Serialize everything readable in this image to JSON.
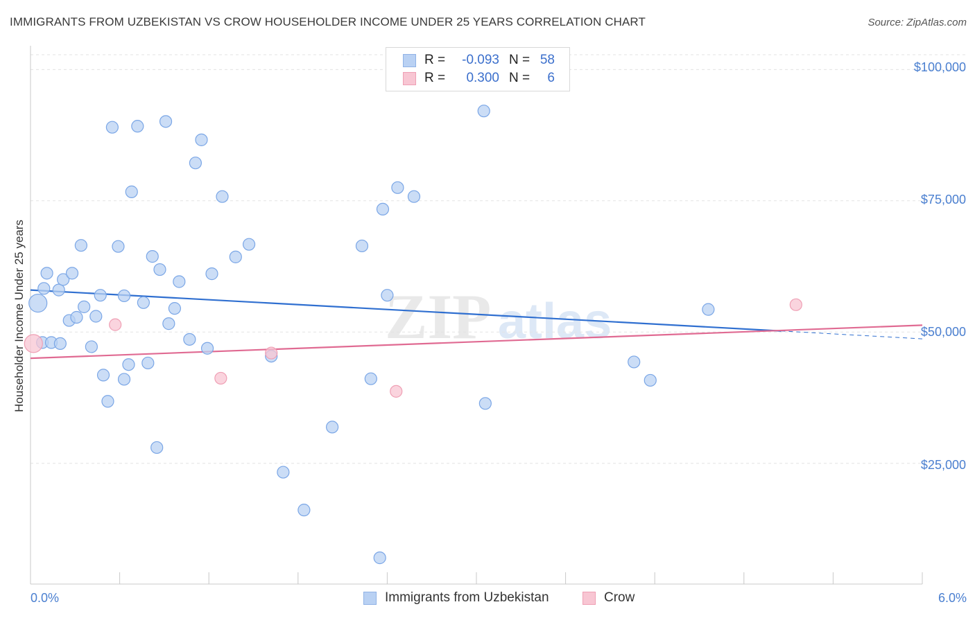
{
  "title": "IMMIGRANTS FROM UZBEKISTAN VS CROW HOUSEHOLDER INCOME UNDER 25 YEARS CORRELATION CHART",
  "source": "Source: ZipAtlas.com",
  "watermark": {
    "zip": "ZIP",
    "atlas": "atlas"
  },
  "legend": {
    "rows": [
      {
        "r_label": "R =",
        "r_value": "-0.093",
        "n_label": "N =",
        "n_value": "58",
        "fill": "#b9d1f3",
        "stroke": "#8fb2e6"
      },
      {
        "r_label": "R =",
        "r_value": "0.300",
        "n_label": "N =",
        "n_value": "6",
        "fill": "#f8c6d3",
        "stroke": "#ef9fb4"
      }
    ]
  },
  "bottom_legend": {
    "items": [
      {
        "label": "Immigrants from Uzbekistan",
        "fill": "#b9d1f3",
        "stroke": "#8fb2e6"
      },
      {
        "label": "Crow",
        "fill": "#f8c6d3",
        "stroke": "#ef9fb4"
      }
    ]
  },
  "chart_data": {
    "type": "scatter",
    "title": "IMMIGRANTS FROM UZBEKISTAN VS CROW HOUSEHOLDER INCOME UNDER 25 YEARS CORRELATION CHART",
    "xlabel": "",
    "ylabel": "Householder Income Under 25 years",
    "x_tick_labels": [
      "0.0%",
      "6.0%"
    ],
    "y_tick_labels": [
      "$25,000",
      "$50,000",
      "$75,000",
      "$100,000"
    ],
    "xlim": [
      0,
      6
    ],
    "ylim": [
      2000,
      104000
    ],
    "y_ticks": [
      25000,
      50000,
      75000,
      100000
    ],
    "grid": true,
    "legend_position": "top-center",
    "series": [
      {
        "name": "Immigrants from Uzbekistan",
        "color": "#7aa6e6",
        "fill": "#b9d1f3",
        "trend_color": "#2f6fd0",
        "trend": {
          "x0": 0.0,
          "y0": 58000,
          "x1": 5.05,
          "y1": 50200
        },
        "trend_ext": {
          "x0": 5.05,
          "y0": 50200,
          "x1": 6.0,
          "y1": 48700
        },
        "points": [
          {
            "x": 0.05,
            "y": 55500,
            "big": true
          },
          {
            "x": 0.08,
            "y": 48000
          },
          {
            "x": 0.14,
            "y": 48000
          },
          {
            "x": 0.11,
            "y": 61200
          },
          {
            "x": 0.19,
            "y": 58000
          },
          {
            "x": 0.22,
            "y": 60000
          },
          {
            "x": 0.26,
            "y": 52200
          },
          {
            "x": 0.28,
            "y": 61200
          },
          {
            "x": 0.31,
            "y": 52800
          },
          {
            "x": 0.34,
            "y": 66500
          },
          {
            "x": 0.36,
            "y": 54800
          },
          {
            "x": 0.41,
            "y": 47200
          },
          {
            "x": 0.44,
            "y": 53000
          },
          {
            "x": 0.47,
            "y": 57000
          },
          {
            "x": 0.49,
            "y": 41800
          },
          {
            "x": 0.52,
            "y": 36800
          },
          {
            "x": 0.55,
            "y": 89000
          },
          {
            "x": 0.59,
            "y": 66300
          },
          {
            "x": 0.63,
            "y": 56900
          },
          {
            "x": 0.63,
            "y": 41000
          },
          {
            "x": 0.66,
            "y": 43800
          },
          {
            "x": 0.72,
            "y": 89200
          },
          {
            "x": 0.68,
            "y": 76700
          },
          {
            "x": 0.76,
            "y": 55600
          },
          {
            "x": 0.79,
            "y": 44100
          },
          {
            "x": 0.82,
            "y": 64400
          },
          {
            "x": 0.85,
            "y": 28000
          },
          {
            "x": 0.87,
            "y": 61900
          },
          {
            "x": 0.91,
            "y": 90100
          },
          {
            "x": 0.93,
            "y": 51600
          },
          {
            "x": 0.97,
            "y": 54500
          },
          {
            "x": 1.0,
            "y": 59600
          },
          {
            "x": 1.07,
            "y": 48600
          },
          {
            "x": 1.11,
            "y": 82200
          },
          {
            "x": 1.15,
            "y": 86600
          },
          {
            "x": 1.19,
            "y": 46900
          },
          {
            "x": 1.22,
            "y": 61100
          },
          {
            "x": 1.29,
            "y": 75800
          },
          {
            "x": 1.38,
            "y": 64300
          },
          {
            "x": 1.47,
            "y": 66700
          },
          {
            "x": 1.62,
            "y": 45400
          },
          {
            "x": 1.7,
            "y": 23300
          },
          {
            "x": 1.84,
            "y": 16100
          },
          {
            "x": 2.03,
            "y": 31900
          },
          {
            "x": 2.23,
            "y": 66400
          },
          {
            "x": 2.29,
            "y": 41100
          },
          {
            "x": 2.35,
            "y": 7000
          },
          {
            "x": 2.37,
            "y": 73400
          },
          {
            "x": 2.4,
            "y": 57000
          },
          {
            "x": 2.47,
            "y": 77500
          },
          {
            "x": 2.58,
            "y": 75800
          },
          {
            "x": 3.06,
            "y": 36400
          },
          {
            "x": 3.05,
            "y": 92100
          },
          {
            "x": 4.06,
            "y": 44300
          },
          {
            "x": 4.17,
            "y": 40800
          },
          {
            "x": 4.56,
            "y": 54300
          },
          {
            "x": 0.2,
            "y": 47800
          },
          {
            "x": 0.09,
            "y": 58300
          }
        ]
      },
      {
        "name": "Crow",
        "color": "#ef9fb4",
        "fill": "#f8c6d3",
        "trend_color": "#e06a92",
        "trend": {
          "x0": 0.0,
          "y0": 45000,
          "x1": 6.0,
          "y1": 51300
        },
        "points": [
          {
            "x": 0.02,
            "y": 47800,
            "big": true
          },
          {
            "x": 0.57,
            "y": 51400
          },
          {
            "x": 1.28,
            "y": 41200
          },
          {
            "x": 1.62,
            "y": 46000
          },
          {
            "x": 2.46,
            "y": 38700
          },
          {
            "x": 5.15,
            "y": 55200
          }
        ]
      }
    ]
  }
}
